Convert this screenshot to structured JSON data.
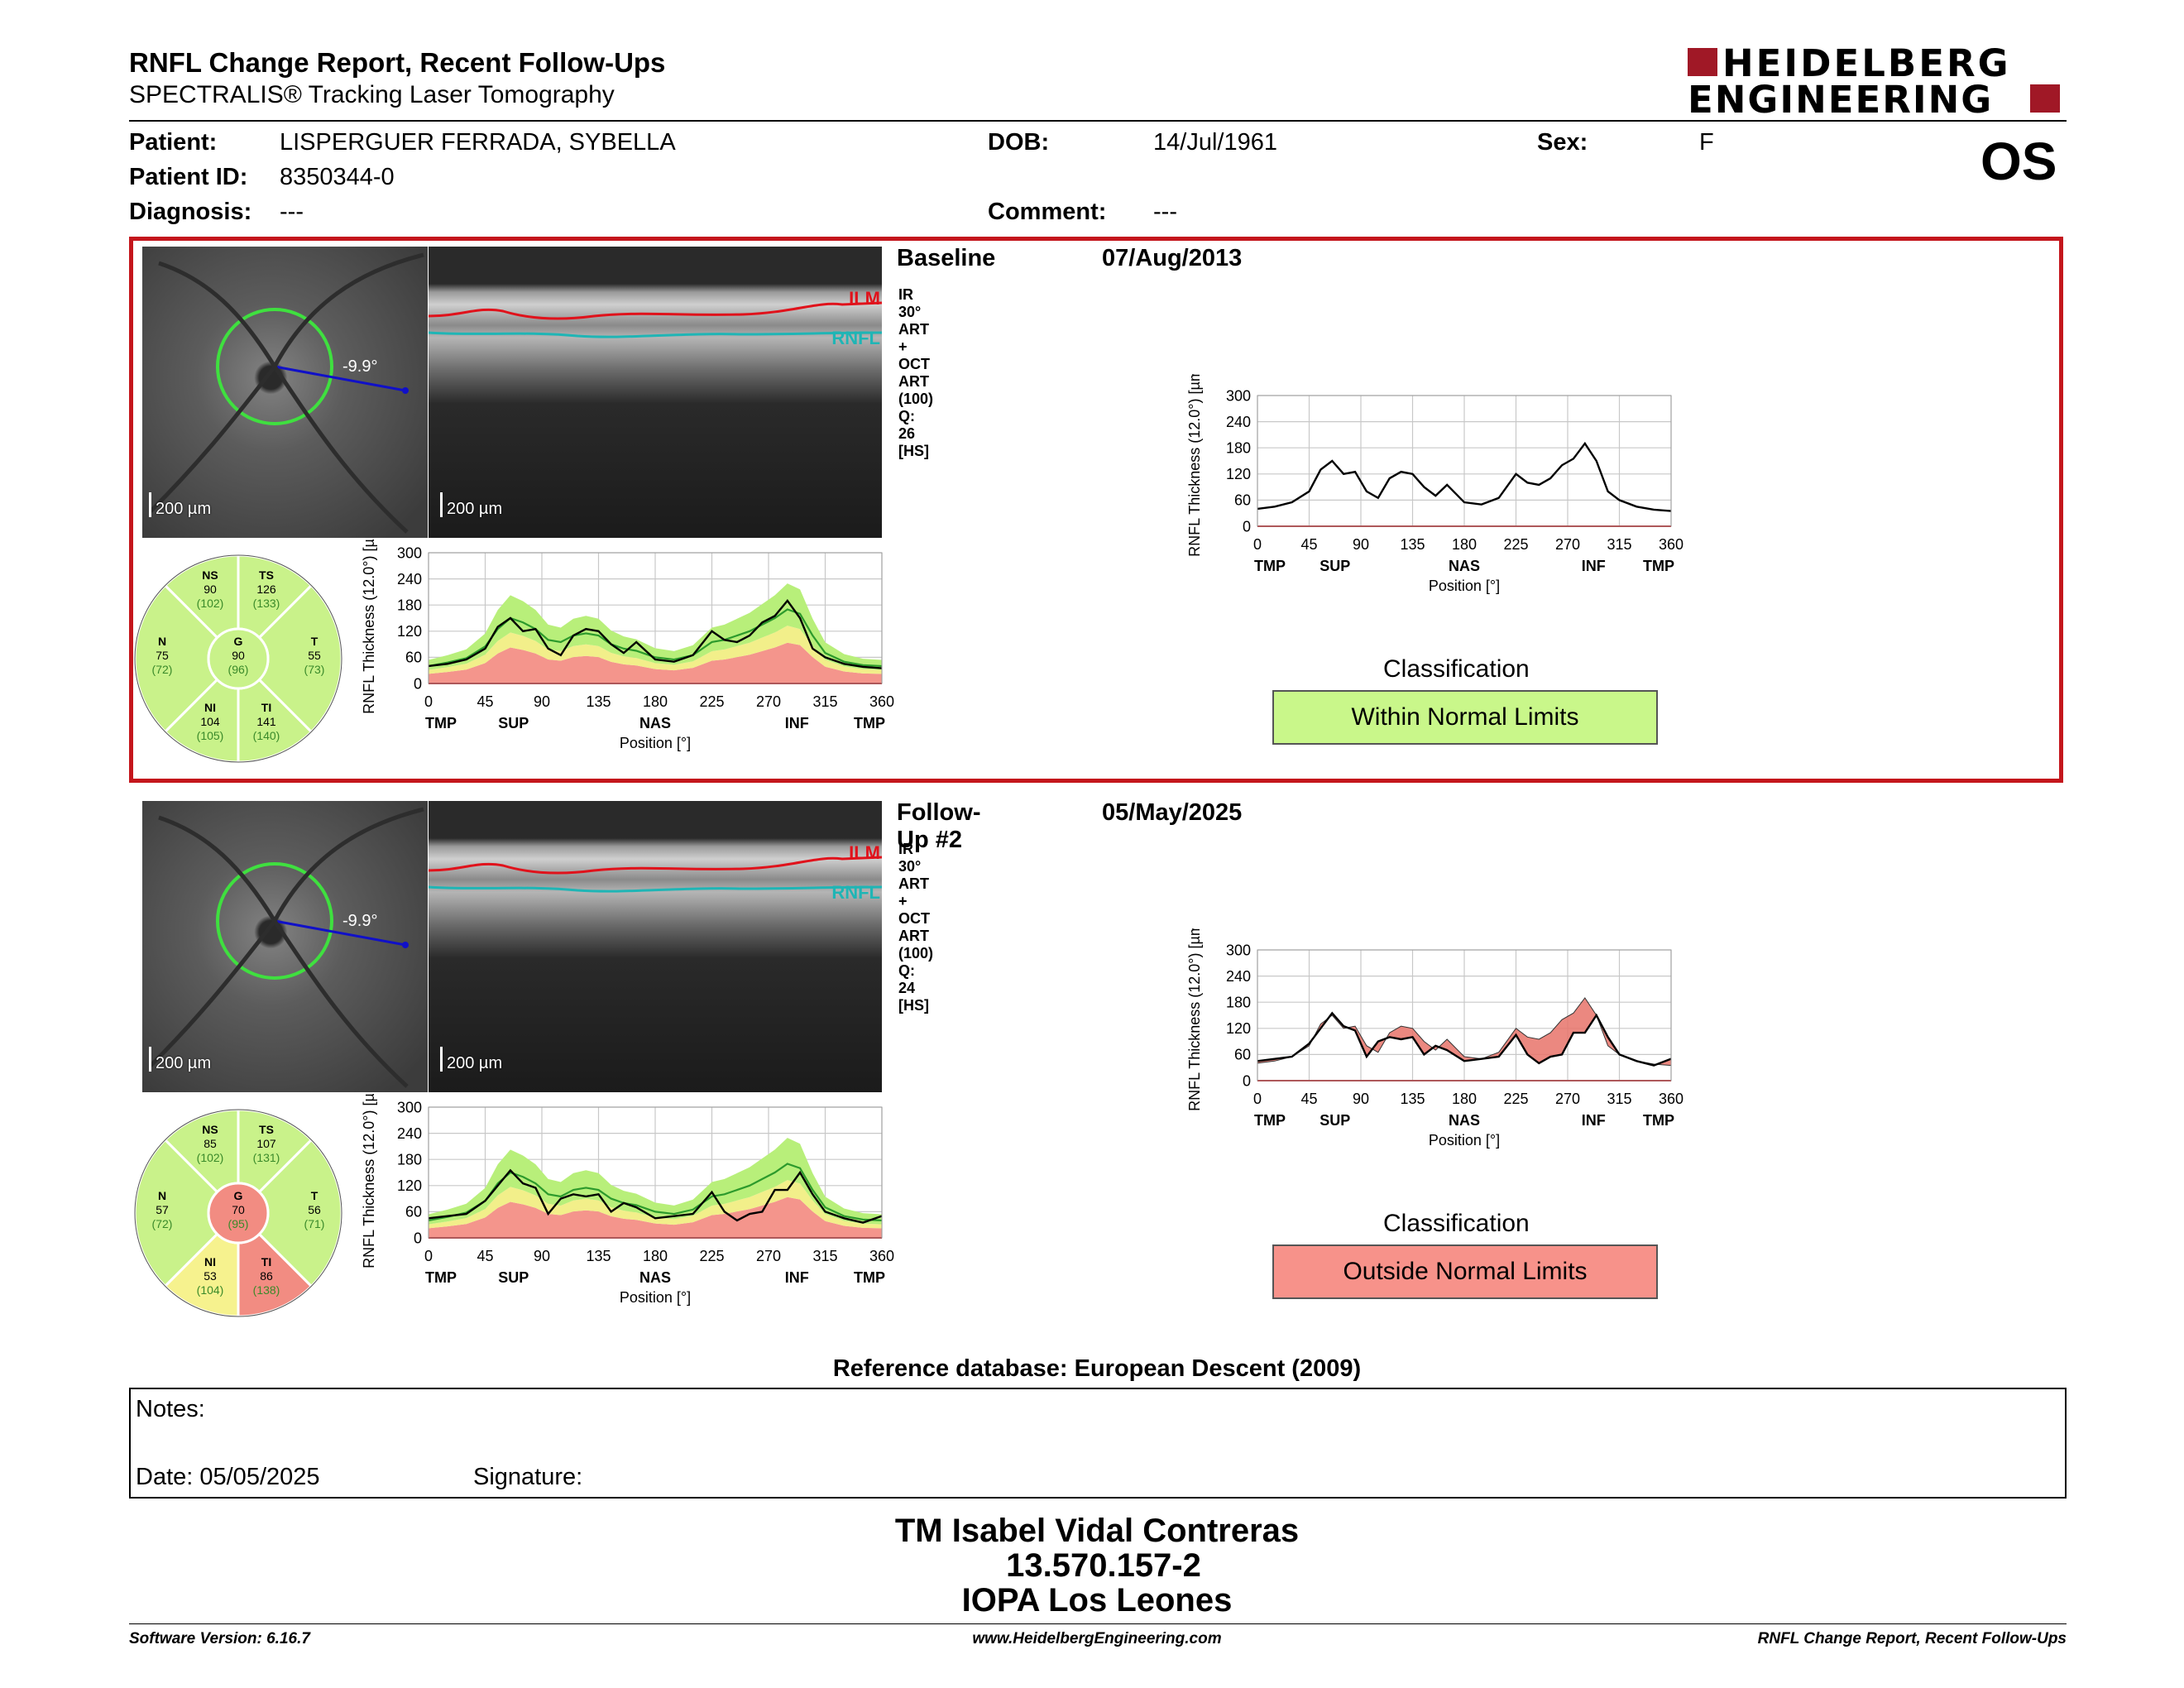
{
  "header": {
    "title": "RNFL Change Report, Recent Follow-Ups",
    "subtitle": "SPECTRALIS® Tracking Laser Tomography",
    "logo_line1": "HEIDELBERG",
    "logo_line2": "ENGINEERING",
    "eye": "OS"
  },
  "patient": {
    "name_label": "Patient:",
    "name": "LISPERGUER FERRADA, SYBELLA",
    "id_label": "Patient ID:",
    "id": "8350344-0",
    "diagnosis_label": "Diagnosis:",
    "diagnosis": "---",
    "dob_label": "DOB:",
    "dob": "14/Jul/1961",
    "comment_label": "Comment:",
    "comment": "---",
    "sex_label": "Sex:",
    "sex": "F"
  },
  "exams": [
    {
      "label": "Baseline",
      "date": "07/Aug/2013",
      "scan_info": "IR 30° ART + OCT ART (100) Q: 26 [HS]",
      "angle": "-9.9°",
      "scale": "200 µm",
      "ilm": "ILM",
      "rnfl": "RNFL",
      "sectors": {
        "NS": {
          "name": "NS",
          "value": "90",
          "ref": "(102)"
        },
        "TS": {
          "name": "TS",
          "value": "126",
          "ref": "(133)"
        },
        "N": {
          "name": "N",
          "value": "75",
          "ref": "(72)"
        },
        "G": {
          "name": "G",
          "value": "90",
          "ref": "(96)"
        },
        "T": {
          "name": "T",
          "value": "55",
          "ref": "(73)"
        },
        "NI": {
          "name": "NI",
          "value": "104",
          "ref": "(105)"
        },
        "TI": {
          "name": "TI",
          "value": "141",
          "ref": "(140)"
        }
      },
      "sector_status": {
        "NS": "normal",
        "TS": "normal",
        "N": "normal",
        "G": "normal",
        "T": "normal",
        "NI": "normal",
        "TI": "normal"
      },
      "classification_label": "Classification",
      "classification": "Within Normal Limits",
      "classification_color": "#c9f78a"
    },
    {
      "label": "Follow-Up #2",
      "date": "05/May/2025",
      "scan_info": "IR 30° ART + OCT ART (100) Q: 24 [HS]",
      "angle": "-9.9°",
      "scale": "200 µm",
      "ilm": "ILM",
      "rnfl": "RNFL",
      "sectors": {
        "NS": {
          "name": "NS",
          "value": "85",
          "ref": "(102)"
        },
        "TS": {
          "name": "TS",
          "value": "107",
          "ref": "(131)"
        },
        "N": {
          "name": "N",
          "value": "57",
          "ref": "(72)"
        },
        "G": {
          "name": "G",
          "value": "70",
          "ref": "(95)"
        },
        "T": {
          "name": "T",
          "value": "56",
          "ref": "(71)"
        },
        "NI": {
          "name": "NI",
          "value": "53",
          "ref": "(104)"
        },
        "TI": {
          "name": "TI",
          "value": "86",
          "ref": "(138)"
        }
      },
      "sector_status": {
        "NS": "normal",
        "TS": "normal",
        "N": "normal",
        "G": "outside",
        "T": "normal",
        "NI": "borderline",
        "TI": "outside"
      },
      "classification_label": "Classification",
      "classification": "Outside Normal Limits",
      "classification_color": "#f7928a"
    }
  ],
  "chart_common": {
    "ylabel": "RNFL Thickness (12.0°) [µm]",
    "xlabel": "Position [°]",
    "yticks": [
      "0",
      "60",
      "120",
      "180",
      "240",
      "300"
    ],
    "xticks": [
      "0",
      "45",
      "90",
      "135",
      "180",
      "225",
      "270",
      "315",
      "360"
    ],
    "regions": [
      "TMP",
      "SUP",
      "NAS",
      "INF",
      "TMP"
    ]
  },
  "chart_data": [
    {
      "type": "line",
      "xlim": [
        0,
        360
      ],
      "ylim": [
        0,
        300
      ],
      "x": [
        0,
        15,
        30,
        45,
        55,
        65,
        75,
        85,
        95,
        105,
        115,
        125,
        135,
        145,
        155,
        165,
        180,
        195,
        210,
        225,
        235,
        245,
        255,
        265,
        275,
        285,
        295,
        305,
        315,
        330,
        345,
        360
      ],
      "series": [
        {
          "values": [
            40,
            45,
            55,
            80,
            130,
            150,
            120,
            125,
            80,
            65,
            110,
            125,
            120,
            90,
            70,
            95,
            55,
            50,
            65,
            120,
            100,
            95,
            110,
            140,
            155,
            190,
            150,
            80,
            60,
            45,
            38,
            35
          ]
        }
      ]
    },
    {
      "type": "line",
      "xlim": [
        0,
        360
      ],
      "ylim": [
        0,
        300
      ],
      "x": [
        0,
        15,
        30,
        45,
        55,
        65,
        75,
        85,
        95,
        105,
        115,
        125,
        135,
        145,
        155,
        165,
        180,
        195,
        210,
        225,
        235,
        245,
        255,
        265,
        275,
        285,
        295,
        305,
        315,
        330,
        345,
        360
      ],
      "series": [
        {
          "values": [
            45,
            50,
            55,
            85,
            120,
            155,
            125,
            115,
            55,
            90,
            100,
            95,
            100,
            60,
            80,
            70,
            45,
            50,
            55,
            105,
            60,
            40,
            55,
            60,
            110,
            110,
            150,
            100,
            60,
            45,
            35,
            50
          ]
        }
      ]
    },
    {
      "type": "area",
      "xlim": [
        0,
        360
      ],
      "ylim": [
        0,
        300
      ],
      "x": [
        0,
        15,
        30,
        45,
        55,
        65,
        75,
        85,
        95,
        105,
        115,
        125,
        135,
        145,
        155,
        165,
        180,
        195,
        210,
        225,
        235,
        245,
        255,
        265,
        275,
        285,
        295,
        305,
        315,
        330,
        345,
        360
      ],
      "series": [
        {
          "values": [
            40,
            48,
            58,
            85,
            125,
            150,
            140,
            125,
            100,
            95,
            110,
            115,
            110,
            90,
            80,
            75,
            60,
            55,
            65,
            95,
            100,
            110,
            120,
            135,
            150,
            170,
            160,
            110,
            70,
            50,
            42,
            40
          ]
        }
      ]
    }
  ],
  "reference_db": "Reference database: European Descent (2009)",
  "notes": {
    "label": "Notes:",
    "date_label": "Date: 05/05/2025",
    "signature_label": "Signature:"
  },
  "signoff": {
    "name": "TM Isabel Vidal Contreras",
    "id": "13.570.157-2",
    "place": "IOPA Los Leones"
  },
  "footer": {
    "version": "Software Version: 6.16.7",
    "url": "www.HeidelbergEngineering.com",
    "report": "RNFL Change Report, Recent Follow-Ups"
  }
}
